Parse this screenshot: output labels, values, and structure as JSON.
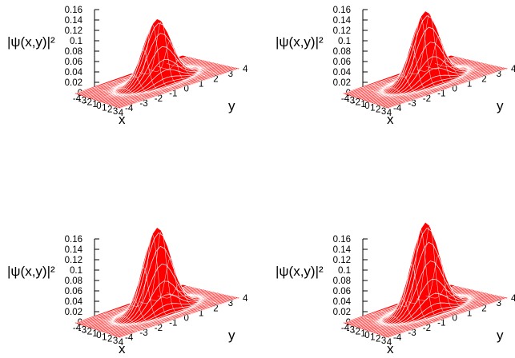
{
  "chart_data": [
    {
      "type": "surface",
      "panel": "top-left",
      "title": "",
      "zlabel": "|ψ(x,y)|²",
      "xlabel": "x",
      "ylabel": "y",
      "xlim": [
        -4,
        4
      ],
      "ylim": [
        -4,
        4
      ],
      "zlim": [
        0,
        0.16
      ],
      "x_ticks": [
        "-4",
        "-3",
        "-2",
        "-1",
        "0",
        "1",
        "2",
        "3",
        "4"
      ],
      "y_ticks": [
        "-4",
        "-3",
        "-2",
        "-1",
        "0",
        "1",
        "2",
        "3",
        "4"
      ],
      "z_ticks": [
        "0",
        "0.02",
        "0.04",
        "0.06",
        "0.08",
        "0.1",
        "0.12",
        "0.14",
        "0.16"
      ],
      "peak_value": 0.12,
      "color": "#ff0000"
    },
    {
      "type": "surface",
      "panel": "top-right",
      "title": "",
      "zlabel": "|ψ(x,y)|²",
      "xlabel": "x",
      "ylabel": "y",
      "xlim": [
        -4,
        4
      ],
      "ylim": [
        -4,
        4
      ],
      "zlim": [
        0,
        0.16
      ],
      "x_ticks": [
        "-4",
        "-3",
        "-2",
        "-1",
        "0",
        "1",
        "2",
        "3",
        "4"
      ],
      "y_ticks": [
        "-4",
        "-3",
        "-2",
        "-1",
        "0",
        "1",
        "2",
        "3",
        "4"
      ],
      "z_ticks": [
        "0",
        "0.02",
        "0.04",
        "0.06",
        "0.08",
        "0.1",
        "0.12",
        "0.14",
        "0.16"
      ],
      "peak_value": 0.135,
      "color": "#ff0000"
    },
    {
      "type": "surface",
      "panel": "bottom-left",
      "title": "",
      "zlabel": "|ψ(x,y)|²",
      "xlabel": "x",
      "ylabel": "y",
      "xlim": [
        -4,
        4
      ],
      "ylim": [
        -4,
        4
      ],
      "zlim": [
        0,
        0.16
      ],
      "x_ticks": [
        "-4",
        "-3",
        "-2",
        "-1",
        "0",
        "1",
        "2",
        "3",
        "4"
      ],
      "y_ticks": [
        "-4",
        "-3",
        "-2",
        "-1",
        "0",
        "1",
        "2",
        "3",
        "4"
      ],
      "z_ticks": [
        "0",
        "0.02",
        "0.04",
        "0.06",
        "0.08",
        "0.1",
        "0.12",
        "0.14",
        "0.16"
      ],
      "peak_value": 0.16,
      "color": "#ff0000"
    },
    {
      "type": "surface",
      "panel": "bottom-right",
      "title": "",
      "zlabel": "|ψ(x,y)|²",
      "xlabel": "x",
      "ylabel": "y",
      "xlim": [
        -4,
        4
      ],
      "ylim": [
        -4,
        4
      ],
      "zlim": [
        0,
        0.16
      ],
      "x_ticks": [
        "-4",
        "-3",
        "-2",
        "-1",
        "0",
        "1",
        "2",
        "3",
        "4"
      ],
      "y_ticks": [
        "-4",
        "-3",
        "-2",
        "-1",
        "0",
        "1",
        "2",
        "3",
        "4"
      ],
      "z_ticks": [
        "0",
        "0.02",
        "0.04",
        "0.06",
        "0.08",
        "0.1",
        "0.12",
        "0.14",
        "0.16"
      ],
      "peak_value": 0.17,
      "color": "#ff0000"
    }
  ]
}
